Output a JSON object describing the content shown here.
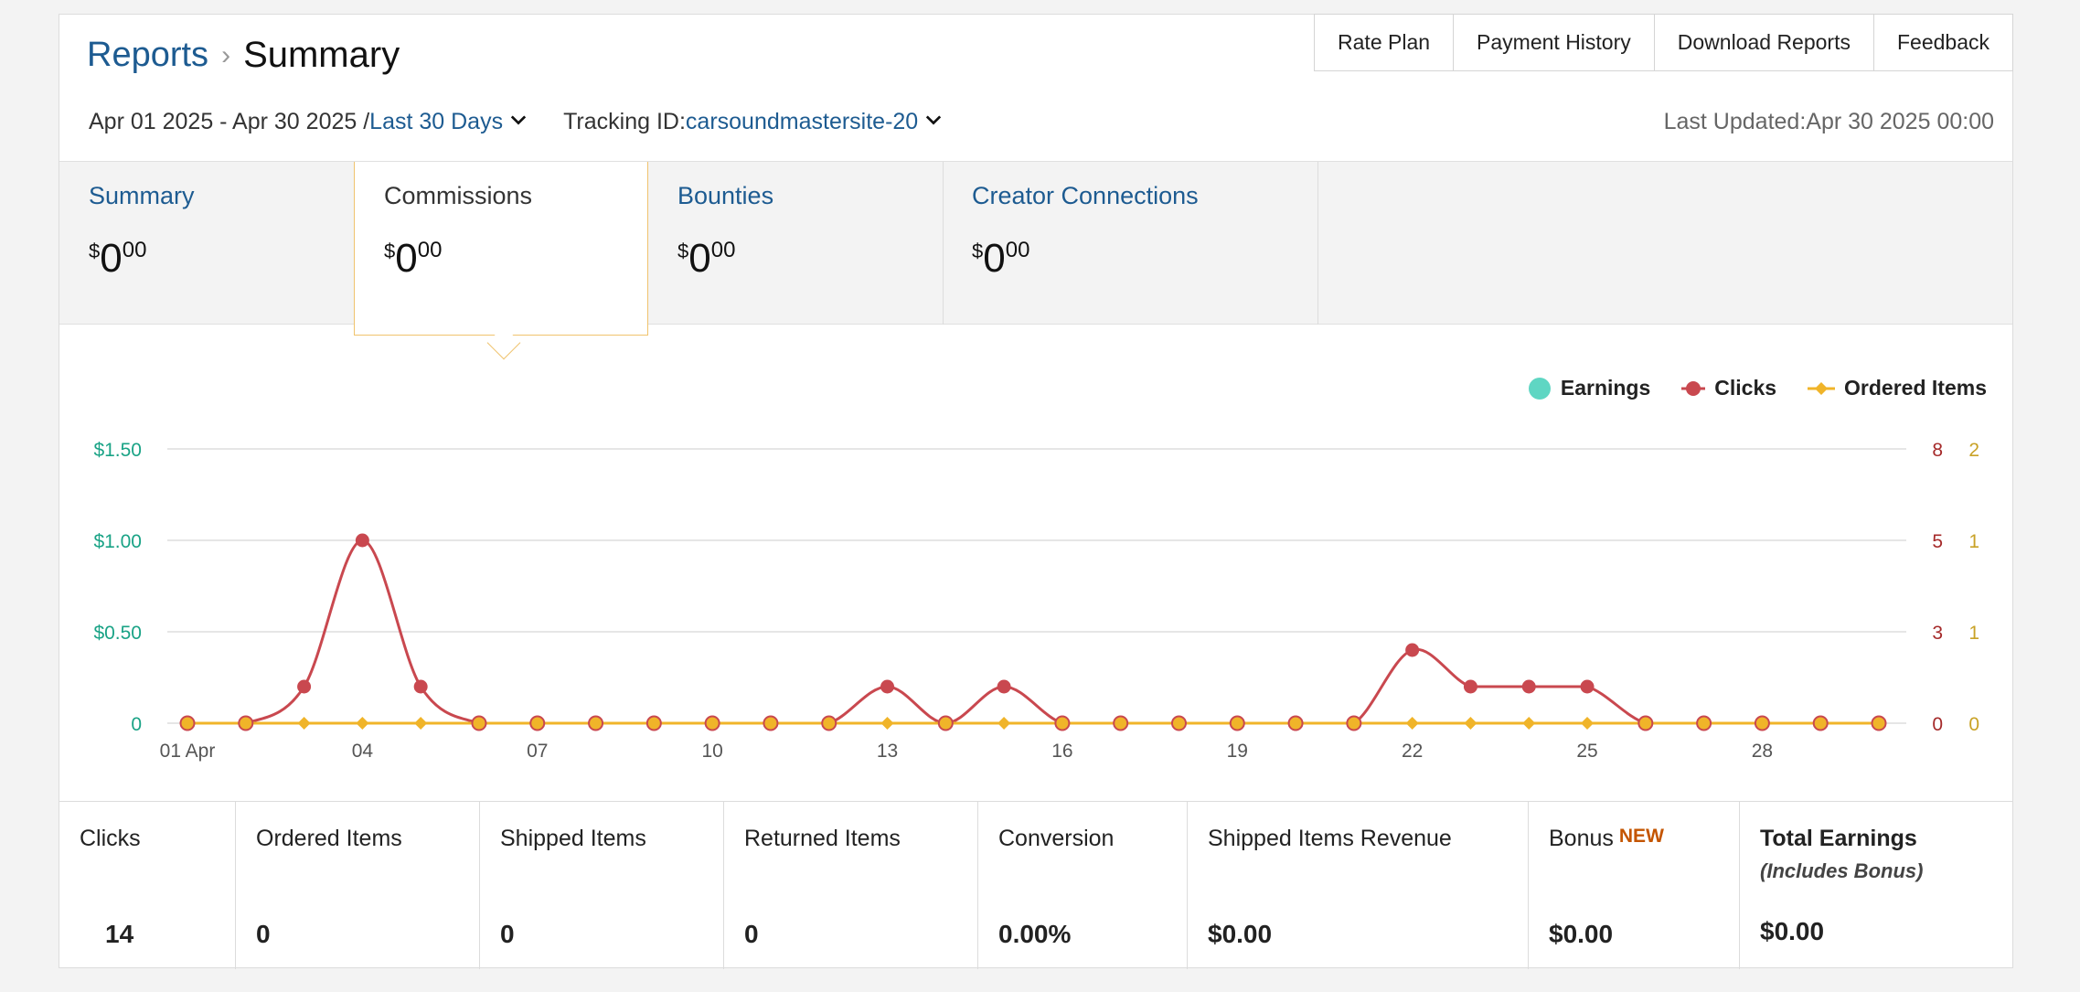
{
  "breadcrumb": {
    "parent": "Reports",
    "separator": "›",
    "current": "Summary"
  },
  "topnav": [
    "Rate Plan",
    "Payment History",
    "Download Reports",
    "Feedback"
  ],
  "filters": {
    "date_range": "Apr 01 2025 - Apr 30 2025 /",
    "period": "Last 30 Days",
    "tracking_label": "Tracking ID:",
    "tracking_id": "carsoundmastersite-20"
  },
  "last_updated": "Last Updated:Apr 30 2025 00:00",
  "tabs": [
    {
      "label": "Summary",
      "currency": "$",
      "whole": "0",
      "cents": "00",
      "active": false
    },
    {
      "label": "Commissions",
      "currency": "$",
      "whole": "0",
      "cents": "00",
      "active": true
    },
    {
      "label": "Bounties",
      "currency": "$",
      "whole": "0",
      "cents": "00",
      "active": false
    },
    {
      "label": "Creator Connections",
      "currency": "$",
      "whole": "0",
      "cents": "00",
      "active": false
    }
  ],
  "chart_data": {
    "type": "line",
    "x_labels": [
      "01 Apr",
      "04",
      "07",
      "10",
      "13",
      "16",
      "19",
      "22",
      "25",
      "28"
    ],
    "x_label_days": [
      1,
      4,
      7,
      10,
      13,
      16,
      19,
      22,
      25,
      28
    ],
    "x_days": [
      1,
      2,
      3,
      4,
      5,
      6,
      7,
      8,
      9,
      10,
      11,
      12,
      13,
      14,
      15,
      16,
      17,
      18,
      19,
      20,
      21,
      22,
      23,
      24,
      25,
      26,
      27,
      28,
      29,
      30
    ],
    "left_axis_ticks": [
      "0",
      "$0.50",
      "$1.00",
      "$1.50"
    ],
    "right_axis_clicks_ticks": [
      "0",
      "3",
      "5",
      "8"
    ],
    "right_axis_items_ticks": [
      "0",
      "1",
      "1",
      "2"
    ],
    "left_ylim": [
      0,
      1.5
    ],
    "clicks_ylim": [
      0,
      7.5
    ],
    "items_ylim": [
      0,
      2
    ],
    "grid": true,
    "legend_position": "top-right",
    "series": [
      {
        "name": "Earnings",
        "color": "#5fd6c3",
        "values": [
          0,
          0,
          0,
          0,
          0,
          0,
          0,
          0,
          0,
          0,
          0,
          0,
          0,
          0,
          0,
          0,
          0,
          0,
          0,
          0,
          0,
          0,
          0,
          0,
          0,
          0,
          0,
          0,
          0,
          0
        ]
      },
      {
        "name": "Clicks",
        "color": "#c9484f",
        "values": [
          0,
          0,
          1,
          5,
          1,
          0,
          0,
          0,
          0,
          0,
          0,
          0,
          1,
          0,
          1,
          0,
          0,
          0,
          0,
          0,
          0,
          2,
          1,
          1,
          1,
          0,
          0,
          0,
          0,
          0
        ]
      },
      {
        "name": "Ordered Items",
        "color": "#f0b429",
        "values": [
          0,
          0,
          0,
          0,
          0,
          0,
          0,
          0,
          0,
          0,
          0,
          0,
          0,
          0,
          0,
          0,
          0,
          0,
          0,
          0,
          0,
          0,
          0,
          0,
          0,
          0,
          0,
          0,
          0,
          0
        ]
      }
    ],
    "colors": {
      "left_axis": "#1aa386",
      "clicks_axis": "#a52a2a",
      "items_axis": "#c9a227",
      "grid": "#dddddd"
    }
  },
  "stats": [
    {
      "label": "Clicks",
      "value": "14"
    },
    {
      "label": "Ordered Items",
      "value": "0"
    },
    {
      "label": "Shipped Items",
      "value": "0"
    },
    {
      "label": "Returned Items",
      "value": "0"
    },
    {
      "label": "Conversion",
      "value": "0.00%"
    },
    {
      "label": "Shipped Items Revenue",
      "value": "$0.00"
    },
    {
      "label": "Bonus",
      "badge": "NEW",
      "value": "$0.00"
    },
    {
      "label": "Total Earnings",
      "sub": "(Includes Bonus)",
      "value": "$0.00"
    }
  ]
}
